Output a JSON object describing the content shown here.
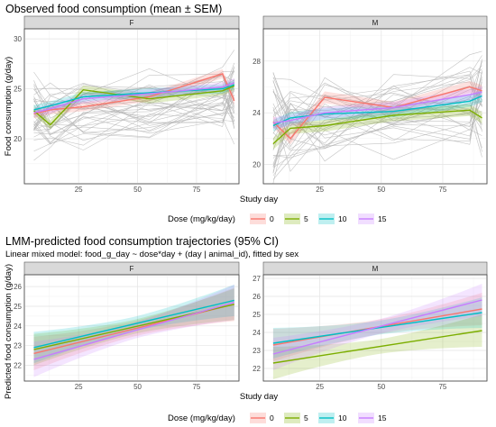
{
  "colors": {
    "0": "#F8766D",
    "5": "#7CAE00",
    "10": "#00BFC4",
    "15": "#C77CFF"
  },
  "chart_data": [
    {
      "type": "line",
      "title": "Observed food consumption (mean ± SEM)",
      "xlabel": "Study day",
      "ylabel": "Food consumption (g/day)",
      "legend": {
        "title": "Dose (mg/kg/day)",
        "labels": [
          "0",
          "5",
          "10",
          "15"
        ],
        "placement": "bottom"
      },
      "facets": [
        {
          "label": "F",
          "xlim": [
            2,
            93
          ],
          "ylim": [
            15.5,
            31
          ],
          "xticks": [
            25,
            50,
            75
          ],
          "yticks": [
            20,
            25,
            30
          ],
          "series": [
            {
              "name": "0",
              "x": [
                6,
                13,
                27,
                55,
                86,
                91
              ],
              "y": [
                22.5,
                22.9,
                23.2,
                24.2,
                26.5,
                23.8
              ]
            },
            {
              "name": "5",
              "x": [
                6,
                13,
                27,
                55,
                86,
                91
              ],
              "y": [
                22.8,
                21.4,
                24.9,
                24.0,
                24.8,
                25.3
              ]
            },
            {
              "name": "10",
              "x": [
                6,
                13,
                27,
                55,
                86,
                91
              ],
              "y": [
                22.9,
                23.3,
                24.2,
                24.6,
                25.0,
                25.4
              ]
            },
            {
              "name": "15",
              "x": [
                6,
                13,
                27,
                55,
                86,
                91
              ],
              "y": [
                22.6,
                23.0,
                24.0,
                24.5,
                25.2,
                25.6
              ]
            }
          ]
        },
        {
          "label": "M",
          "xlim": [
            2,
            93
          ],
          "ylim": [
            18.5,
            30.5
          ],
          "xticks": [
            25,
            50,
            75
          ],
          "yticks": [
            20,
            24,
            28
          ],
          "series": [
            {
              "name": "0",
              "x": [
                6,
                13,
                27,
                55,
                86,
                91
              ],
              "y": [
                23.3,
                22.0,
                25.2,
                24.4,
                26.0,
                25.7
              ]
            },
            {
              "name": "5",
              "x": [
                6,
                13,
                27,
                55,
                86,
                91
              ],
              "y": [
                21.6,
                22.8,
                23.0,
                23.8,
                24.2,
                23.6
              ]
            },
            {
              "name": "10",
              "x": [
                6,
                13,
                27,
                55,
                86,
                91
              ],
              "y": [
                23.0,
                23.6,
                23.9,
                24.1,
                24.9,
                25.3
              ]
            },
            {
              "name": "15",
              "x": [
                6,
                13,
                27,
                55,
                86,
                91
              ],
              "y": [
                23.2,
                23.4,
                24.0,
                24.4,
                25.4,
                25.6
              ]
            }
          ]
        }
      ]
    },
    {
      "type": "line",
      "title": "LMM-predicted food consumption trajectories (95% CI)",
      "subtitle": "Linear mixed model: food_g_day ~ dose*day + (day | animal_id), fitted by sex",
      "xlabel": "Study day",
      "ylabel": "Predicted food consumption (g/day)",
      "legend": {
        "title": "Dose (mg/kg/day)",
        "labels": [
          "0",
          "5",
          "10",
          "15"
        ],
        "placement": "bottom"
      },
      "facets": [
        {
          "label": "F",
          "xlim": [
            2,
            93
          ],
          "ylim": [
            21.2,
            26.6
          ],
          "xticks": [
            25,
            50,
            75
          ],
          "yticks": [
            22,
            23,
            24,
            25,
            26
          ],
          "series": [
            {
              "name": "0",
              "x": [
                6,
                91
              ],
              "y": [
                22.6,
                25.1
              ],
              "ci": 0.85
            },
            {
              "name": "5",
              "x": [
                6,
                91
              ],
              "y": [
                22.8,
                25.1
              ],
              "ci": 0.8
            },
            {
              "name": "10",
              "x": [
                6,
                91
              ],
              "y": [
                22.9,
                25.3
              ],
              "ci": 0.8
            },
            {
              "name": "15",
              "x": [
                6,
                91
              ],
              "y": [
                22.3,
                25.2
              ],
              "ci": 0.9
            }
          ]
        },
        {
          "label": "M",
          "xlim": [
            2,
            93
          ],
          "ylim": [
            21.3,
            27.2
          ],
          "xticks": [
            25,
            50,
            75
          ],
          "yticks": [
            22,
            23,
            24,
            25,
            26,
            27
          ],
          "series": [
            {
              "name": "0",
              "x": [
                6,
                91
              ],
              "y": [
                23.3,
                25.3
              ],
              "ci": 0.9
            },
            {
              "name": "5",
              "x": [
                6,
                91
              ],
              "y": [
                22.3,
                24.1
              ],
              "ci": 0.9
            },
            {
              "name": "10",
              "x": [
                6,
                91
              ],
              "y": [
                23.4,
                25.1
              ],
              "ci": 0.85
            },
            {
              "name": "15",
              "x": [
                6,
                91
              ],
              "y": [
                22.8,
                25.8
              ],
              "ci": 0.9
            }
          ]
        }
      ]
    }
  ]
}
